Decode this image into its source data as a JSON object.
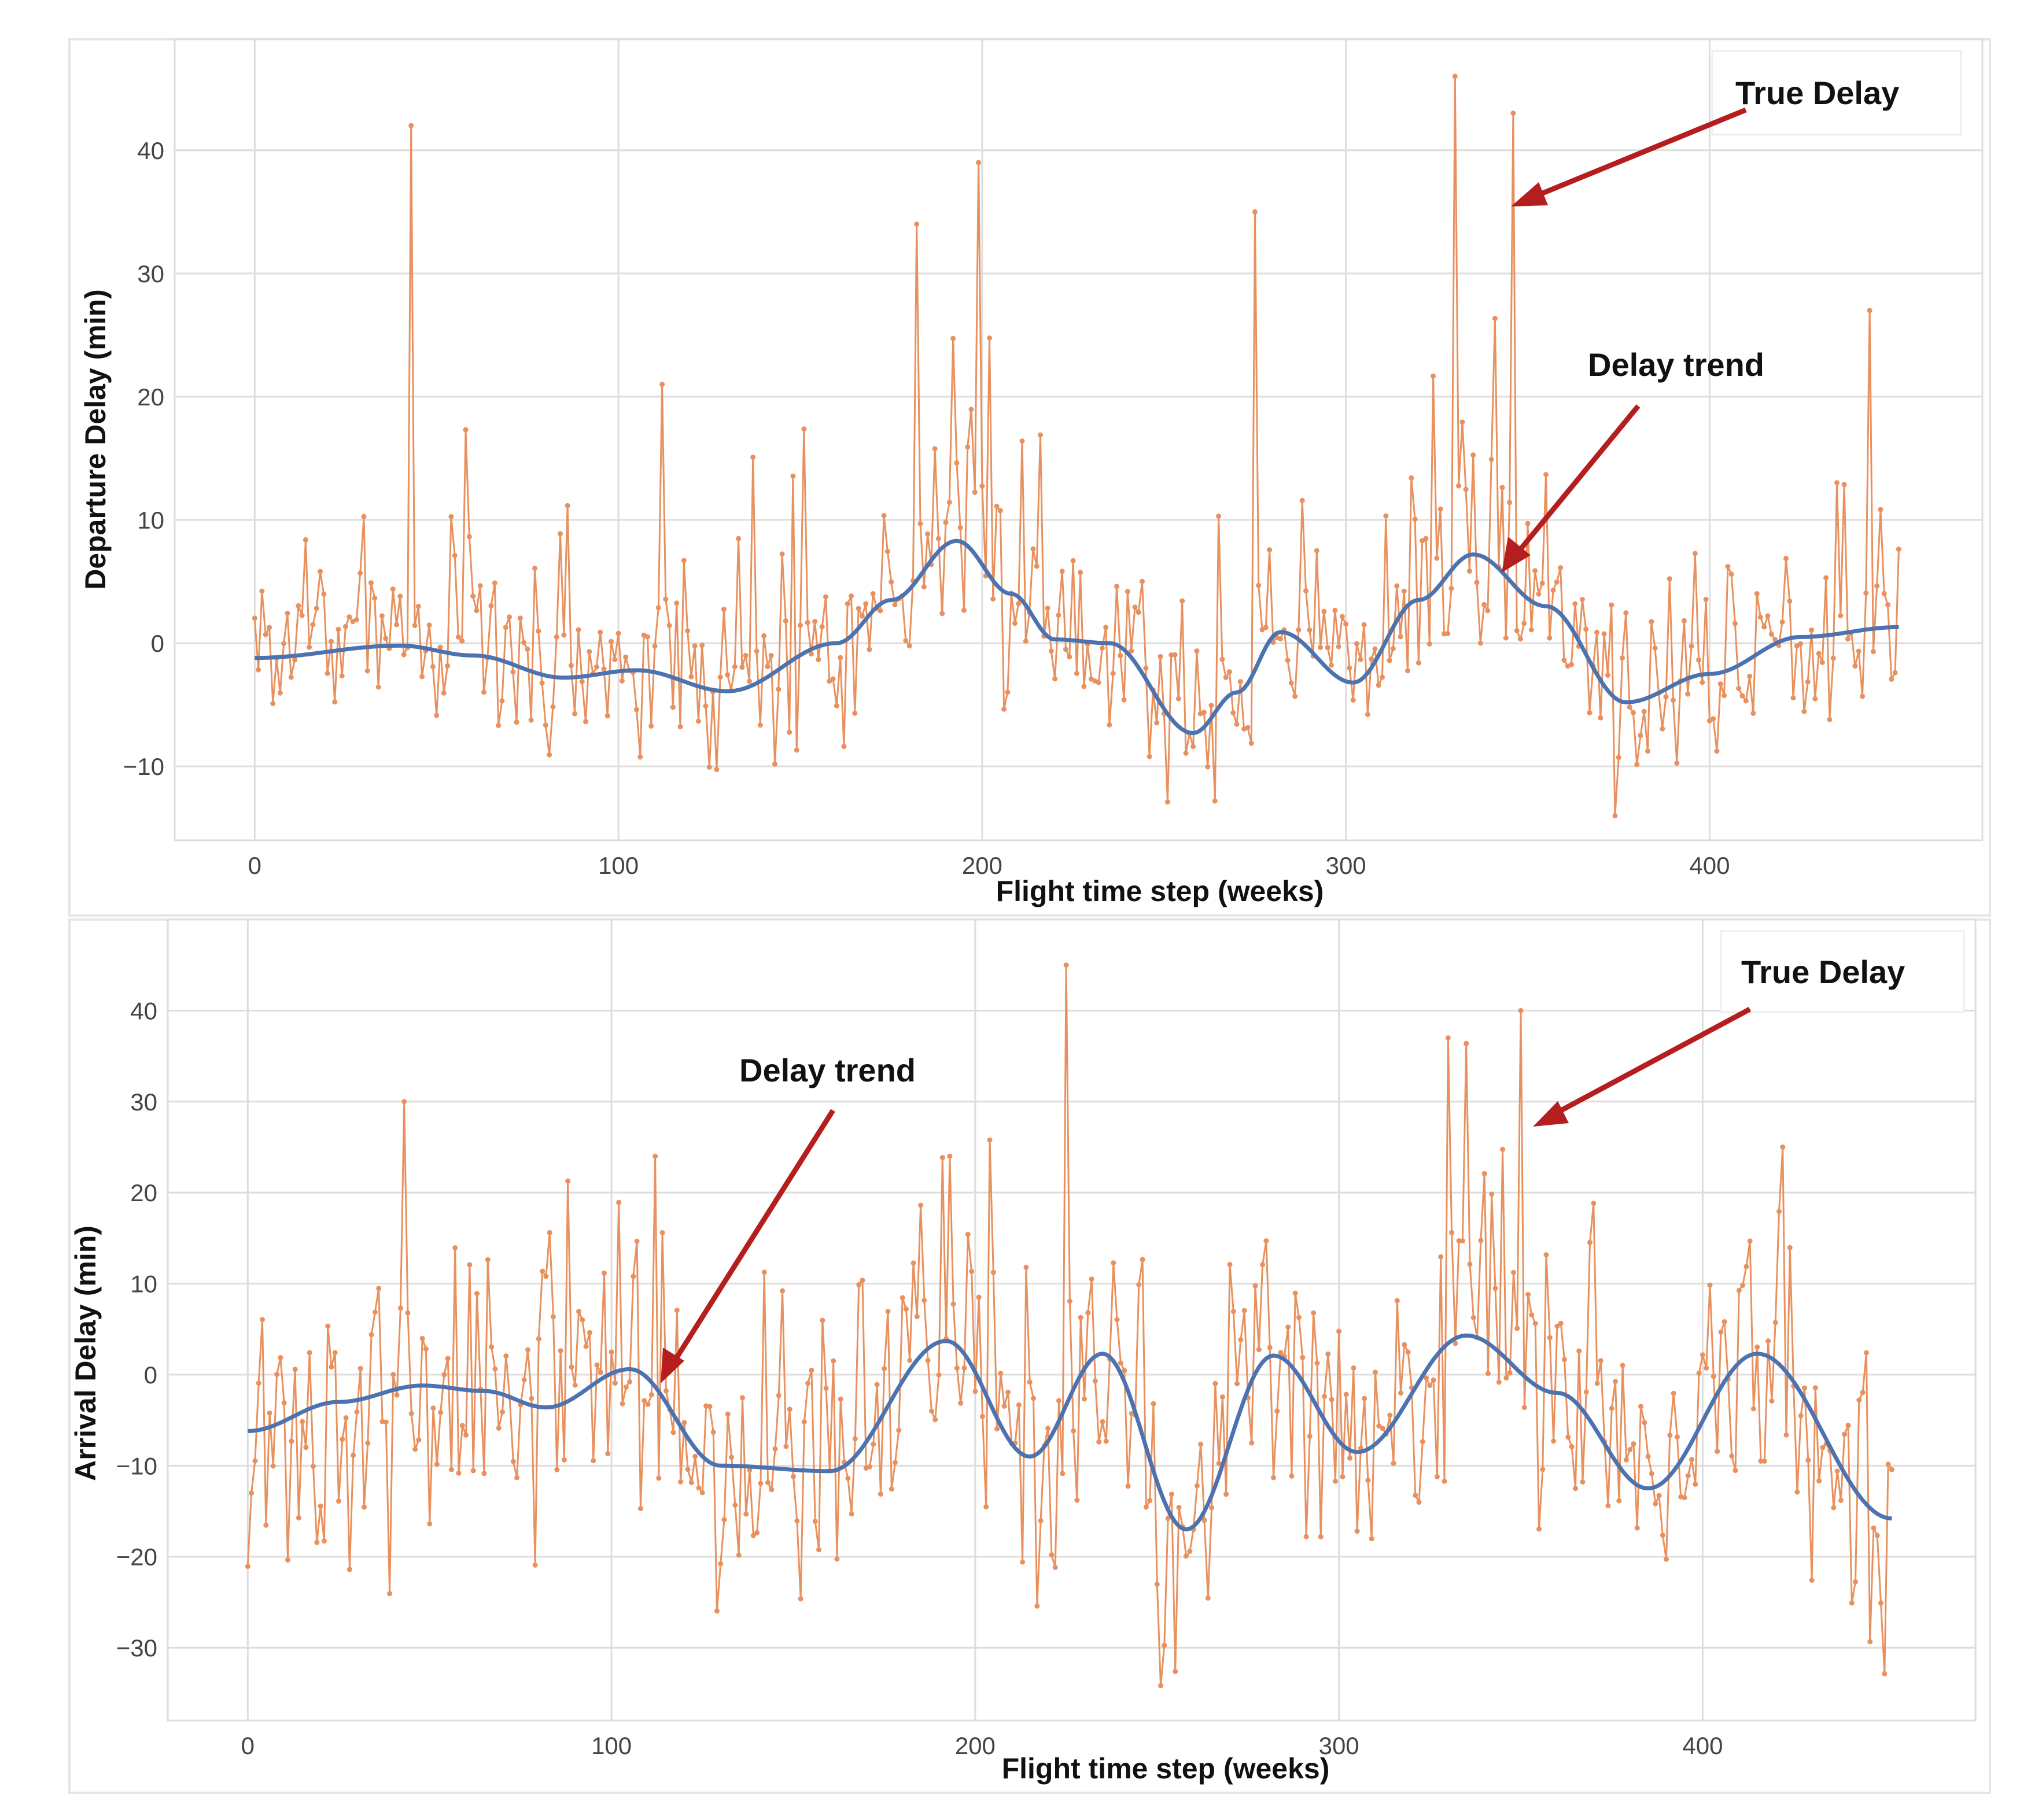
{
  "colors": {
    "true_delay": "#e8915e",
    "trend": "#4c72b0",
    "arrow": "#b41e1e",
    "grid": "#dddddd",
    "axis_text": "#444444"
  },
  "chart_data": [
    {
      "type": "line",
      "xlabel": "Flight time step (weeks)",
      "ylabel": "Departure Delay (min)",
      "xlim": [
        -22,
        475
      ],
      "ylim": [
        -16,
        49
      ],
      "xticks": [
        0,
        100,
        200,
        300,
        400
      ],
      "yticks": [
        -10,
        0,
        10,
        20,
        30,
        40
      ],
      "xtick_labels": [
        "0",
        "100",
        "200",
        "300",
        "400"
      ],
      "ytick_labels": [
        "−10",
        "0",
        "10",
        "20",
        "30",
        "40"
      ],
      "n_points": 453,
      "true_delay_spikes": [
        {
          "x": 43,
          "y": 42
        },
        {
          "x": 112,
          "y": 21
        },
        {
          "x": 182,
          "y": 34
        },
        {
          "x": 199,
          "y": 39
        },
        {
          "x": 275,
          "y": 35
        },
        {
          "x": 330,
          "y": 46
        },
        {
          "x": 346,
          "y": 43
        },
        {
          "x": 444,
          "y": 27
        }
      ],
      "series": [
        {
          "name": "True Delay",
          "note": "noisy weekly departure delay values fluctuating roughly between -13 and 46"
        },
        {
          "name": "Delay trend",
          "x": [
            0,
            40,
            60,
            85,
            105,
            130,
            160,
            175,
            193,
            208,
            220,
            235,
            258,
            270,
            282,
            302,
            320,
            335,
            355,
            377,
            400,
            425,
            452
          ],
          "values": [
            -1.2,
            -0.2,
            -1.0,
            -2.8,
            -2.2,
            -3.9,
            0.0,
            3.5,
            8.3,
            4.0,
            0.3,
            0.0,
            -7.3,
            -4.0,
            0.9,
            -3.2,
            3.5,
            7.2,
            3.0,
            -4.8,
            -2.5,
            0.5,
            1.3
          ]
        }
      ],
      "annotations": [
        {
          "text": "True Delay",
          "target_x": 346,
          "target_y": 35
        },
        {
          "text": "Delay trend",
          "target_x": 343,
          "target_y": 5.5
        }
      ]
    },
    {
      "type": "line",
      "xlabel": "Flight time step (weeks)",
      "ylabel": "Arrival  Delay (min)",
      "xlim": [
        -22,
        475
      ],
      "ylim": [
        -38,
        50
      ],
      "xticks": [
        0,
        100,
        200,
        300,
        400
      ],
      "yticks": [
        -30,
        -20,
        -10,
        0,
        10,
        20,
        30,
        40
      ],
      "xtick_labels": [
        "0",
        "100",
        "200",
        "300",
        "400"
      ],
      "ytick_labels": [
        "−30",
        "−20",
        "−10",
        "0",
        "10",
        "20",
        "30",
        "40"
      ],
      "n_points": 453,
      "true_delay_spikes": [
        {
          "x": 43,
          "y": 30
        },
        {
          "x": 112,
          "y": 24
        },
        {
          "x": 193,
          "y": 24
        },
        {
          "x": 225,
          "y": 45
        },
        {
          "x": 330,
          "y": 37
        },
        {
          "x": 350,
          "y": 40
        },
        {
          "x": 422,
          "y": 25
        }
      ],
      "series": [
        {
          "name": "True Delay",
          "note": "noisy weekly arrival delay values fluctuating roughly between -34 and 45"
        },
        {
          "name": "Delay trend",
          "x": [
            0,
            25,
            48,
            65,
            82,
            105,
            130,
            160,
            192,
            215,
            235,
            258,
            282,
            305,
            335,
            360,
            385,
            415,
            452
          ],
          "values": [
            -6.2,
            -3.0,
            -1.2,
            -1.8,
            -3.6,
            0.6,
            -10.0,
            -10.6,
            3.7,
            -9.0,
            2.3,
            -17.0,
            2.1,
            -8.5,
            4.3,
            -2.0,
            -12.5,
            2.3,
            -15.8
          ]
        }
      ],
      "annotations": [
        {
          "text": "Delay trend",
          "target_x": 112,
          "target_y": -1.5
        },
        {
          "text": "True Delay",
          "target_x": 352,
          "target_y": 26
        }
      ]
    }
  ]
}
